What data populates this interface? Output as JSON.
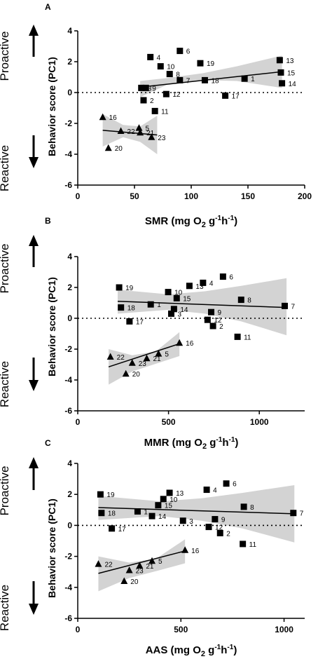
{
  "side_labels": {
    "proactive": "Proactive",
    "reactive": "Reactive"
  },
  "colors": {
    "ink": "#000000",
    "band": "#d3d3d3"
  },
  "chart_data": [
    {
      "type": "scatter",
      "panel": "A",
      "xlabel": "SMR (mg O2 g-1h-1)",
      "ylabel": "Behavior score (PC1)",
      "xlim": [
        0,
        200
      ],
      "ylim": [
        -6,
        4
      ],
      "xticks": [
        0,
        50,
        100,
        150,
        200
      ],
      "yticks": [
        -6,
        -4,
        -2,
        0,
        2,
        4
      ],
      "reference_line_y": 0,
      "series": [
        {
          "marker": "square",
          "points": [
            {
              "x": 58,
              "y": -0.5,
              "label": "2"
            },
            {
              "x": 56,
              "y": 0.3,
              "label": "3"
            },
            {
              "x": 64,
              "y": 2.3,
              "label": "4"
            },
            {
              "x": 90,
              "y": 2.7,
              "label": "6"
            },
            {
              "x": 90,
              "y": 0.8,
              "label": "7"
            },
            {
              "x": 81,
              "y": 1.2,
              "label": "8"
            },
            {
              "x": 60,
              "y": 0.3,
              "label": "9"
            },
            {
              "x": 73,
              "y": 1.7,
              "label": "10"
            },
            {
              "x": 68,
              "y": -1.2,
              "label": "11"
            },
            {
              "x": 78,
              "y": -0.1,
              "label": "12"
            },
            {
              "x": 178,
              "y": 2.1,
              "label": "13"
            },
            {
              "x": 180,
              "y": 0.6,
              "label": "14"
            },
            {
              "x": 179,
              "y": 1.3,
              "label": "15"
            },
            {
              "x": 130,
              "y": -0.2,
              "label": "17"
            },
            {
              "x": 112,
              "y": 0.8,
              "label": "18"
            },
            {
              "x": 108,
              "y": 1.9,
              "label": "19"
            },
            {
              "x": 147,
              "y": 0.9,
              "label": "1"
            }
          ],
          "fit": {
            "x": [
              55,
              180
            ],
            "y": [
              0.35,
              1.35
            ]
          },
          "ci_upper": [
            [
              55,
              0.75
            ],
            [
              80,
              0.95
            ],
            [
              110,
              1.25
            ],
            [
              140,
              1.7
            ],
            [
              180,
              2.4
            ]
          ],
          "ci_lower": [
            [
              55,
              -0.3
            ],
            [
              80,
              0.55
            ],
            [
              110,
              0.8
            ],
            [
              140,
              0.75
            ],
            [
              180,
              0.3
            ]
          ]
        },
        {
          "marker": "triangle",
          "points": [
            {
              "x": 22,
              "y": -1.6,
              "label": "16"
            },
            {
              "x": 38,
              "y": -2.5,
              "label": "22"
            },
            {
              "x": 27,
              "y": -3.6,
              "label": "20"
            },
            {
              "x": 54,
              "y": -2.3,
              "label": "5"
            },
            {
              "x": 55,
              "y": -2.6,
              "label": "21"
            },
            {
              "x": 65,
              "y": -2.9,
              "label": "23"
            }
          ],
          "fit": {
            "x": [
              22,
              70
            ],
            "y": [
              -2.45,
              -2.75
            ]
          },
          "ci_upper": [
            [
              22,
              -1.4
            ],
            [
              40,
              -2.1
            ],
            [
              55,
              -2.2
            ],
            [
              70,
              -1.5
            ]
          ],
          "ci_lower": [
            [
              22,
              -3.5
            ],
            [
              40,
              -2.9
            ],
            [
              55,
              -3.2
            ],
            [
              70,
              -4.0
            ]
          ]
        }
      ]
    },
    {
      "type": "scatter",
      "panel": "B",
      "xlabel": "MMR (mg O2 g-1h-1)",
      "ylabel": "Behavior score (PC1)",
      "xlim": [
        0,
        1250
      ],
      "ylim": [
        -6,
        4
      ],
      "xticks": [
        0,
        500,
        1000
      ],
      "yticks": [
        -6,
        -4,
        -2,
        0,
        2,
        4
      ],
      "reference_line_y": 0,
      "series": [
        {
          "marker": "square",
          "points": [
            {
              "x": 228,
              "y": 2.0,
              "label": "19"
            },
            {
              "x": 238,
              "y": 0.7,
              "label": "18"
            },
            {
              "x": 402,
              "y": 0.9,
              "label": "1"
            },
            {
              "x": 285,
              "y": -0.2,
              "label": "17"
            },
            {
              "x": 498,
              "y": 1.7,
              "label": "10"
            },
            {
              "x": 545,
              "y": 1.3,
              "label": "15"
            },
            {
              "x": 530,
              "y": 0.6,
              "label": "14"
            },
            {
              "x": 515,
              "y": 0.3,
              "label": "3"
            },
            {
              "x": 615,
              "y": 2.1,
              "label": "13"
            },
            {
              "x": 690,
              "y": 2.3,
              "label": "4"
            },
            {
              "x": 800,
              "y": 2.7,
              "label": "6"
            },
            {
              "x": 735,
              "y": 0.4,
              "label": "9"
            },
            {
              "x": 715,
              "y": -0.1,
              "label": "12"
            },
            {
              "x": 745,
              "y": -0.5,
              "label": "2"
            },
            {
              "x": 880,
              "y": -1.2,
              "label": "11"
            },
            {
              "x": 900,
              "y": 1.2,
              "label": "8"
            },
            {
              "x": 1140,
              "y": 0.8,
              "label": "7"
            }
          ],
          "fit": {
            "x": [
              220,
              1150
            ],
            "y": [
              1.1,
              0.7
            ]
          },
          "ci_upper": [
            [
              220,
              1.85
            ],
            [
              500,
              1.55
            ],
            [
              700,
              1.75
            ],
            [
              900,
              2.1
            ],
            [
              1150,
              2.6
            ]
          ],
          "ci_lower": [
            [
              220,
              0.3
            ],
            [
              500,
              0.55
            ],
            [
              700,
              0.3
            ],
            [
              900,
              -0.2
            ],
            [
              1150,
              -1.1
            ]
          ]
        },
        {
          "marker": "triangle",
          "points": [
            {
              "x": 560,
              "y": -1.6,
              "label": "16"
            },
            {
              "x": 180,
              "y": -2.5,
              "label": "22"
            },
            {
              "x": 265,
              "y": -3.6,
              "label": "20"
            },
            {
              "x": 300,
              "y": -2.9,
              "label": "23"
            },
            {
              "x": 380,
              "y": -2.6,
              "label": "21"
            },
            {
              "x": 445,
              "y": -2.3,
              "label": "5"
            }
          ],
          "fit": {
            "x": [
              170,
              560
            ],
            "y": [
              -3.15,
              -1.65
            ]
          },
          "ci_upper": [
            [
              170,
              -2.0
            ],
            [
              300,
              -2.4
            ],
            [
              430,
              -2.15
            ],
            [
              560,
              -0.9
            ]
          ],
          "ci_lower": [
            [
              170,
              -4.3
            ],
            [
              300,
              -3.45
            ],
            [
              430,
              -2.95
            ],
            [
              560,
              -2.45
            ]
          ]
        }
      ]
    },
    {
      "type": "scatter",
      "panel": "C",
      "xlabel": "AAS (mg O2 g-1h-1)",
      "ylabel": "Behavior score (PC1)",
      "xlim": [
        0,
        1100
      ],
      "ylim": [
        -6,
        4
      ],
      "xticks": [
        0,
        500,
        1000
      ],
      "yticks": [
        -6,
        -4,
        -2,
        0,
        2,
        4
      ],
      "reference_line_y": 0,
      "series": [
        {
          "marker": "square",
          "points": [
            {
              "x": 110,
              "y": 2.0,
              "label": "19"
            },
            {
              "x": 115,
              "y": 0.8,
              "label": "18"
            },
            {
              "x": 165,
              "y": -0.2,
              "label": "17"
            },
            {
              "x": 290,
              "y": 0.9,
              "label": "1"
            },
            {
              "x": 360,
              "y": 0.6,
              "label": "14"
            },
            {
              "x": 390,
              "y": 1.3,
              "label": "15"
            },
            {
              "x": 415,
              "y": 1.7,
              "label": "10"
            },
            {
              "x": 445,
              "y": 2.1,
              "label": "13"
            },
            {
              "x": 510,
              "y": 0.3,
              "label": "3"
            },
            {
              "x": 625,
              "y": 2.3,
              "label": "4"
            },
            {
              "x": 720,
              "y": 2.7,
              "label": "6"
            },
            {
              "x": 635,
              "y": -0.1,
              "label": "12"
            },
            {
              "x": 665,
              "y": 0.4,
              "label": "9"
            },
            {
              "x": 690,
              "y": -0.5,
              "label": "2"
            },
            {
              "x": 800,
              "y": -1.2,
              "label": "11"
            },
            {
              "x": 805,
              "y": 1.2,
              "label": "8"
            },
            {
              "x": 1045,
              "y": 0.8,
              "label": "7"
            }
          ],
          "fit": {
            "x": [
              100,
              1050
            ],
            "y": [
              1.15,
              0.75
            ]
          },
          "ci_upper": [
            [
              100,
              1.9
            ],
            [
              400,
              1.55
            ],
            [
              600,
              1.75
            ],
            [
              800,
              2.1
            ],
            [
              1050,
              2.6
            ]
          ],
          "ci_lower": [
            [
              100,
              0.35
            ],
            [
              400,
              0.6
            ],
            [
              600,
              0.3
            ],
            [
              800,
              -0.2
            ],
            [
              1050,
              -1.1
            ]
          ]
        },
        {
          "marker": "triangle",
          "points": [
            {
              "x": 100,
              "y": -2.5,
              "label": "22"
            },
            {
              "x": 225,
              "y": -3.6,
              "label": "20"
            },
            {
              "x": 250,
              "y": -2.9,
              "label": "23"
            },
            {
              "x": 300,
              "y": -2.6,
              "label": "21"
            },
            {
              "x": 360,
              "y": -2.3,
              "label": "5"
            },
            {
              "x": 520,
              "y": -1.6,
              "label": "16"
            }
          ],
          "fit": {
            "x": [
              100,
              520
            ],
            "y": [
              -3.1,
              -1.65
            ]
          },
          "ci_upper": [
            [
              100,
              -2.0
            ],
            [
              250,
              -2.4
            ],
            [
              380,
              -2.15
            ],
            [
              520,
              -0.9
            ]
          ],
          "ci_lower": [
            [
              100,
              -4.25
            ],
            [
              250,
              -3.4
            ],
            [
              380,
              -2.95
            ],
            [
              520,
              -2.45
            ]
          ]
        }
      ]
    }
  ]
}
